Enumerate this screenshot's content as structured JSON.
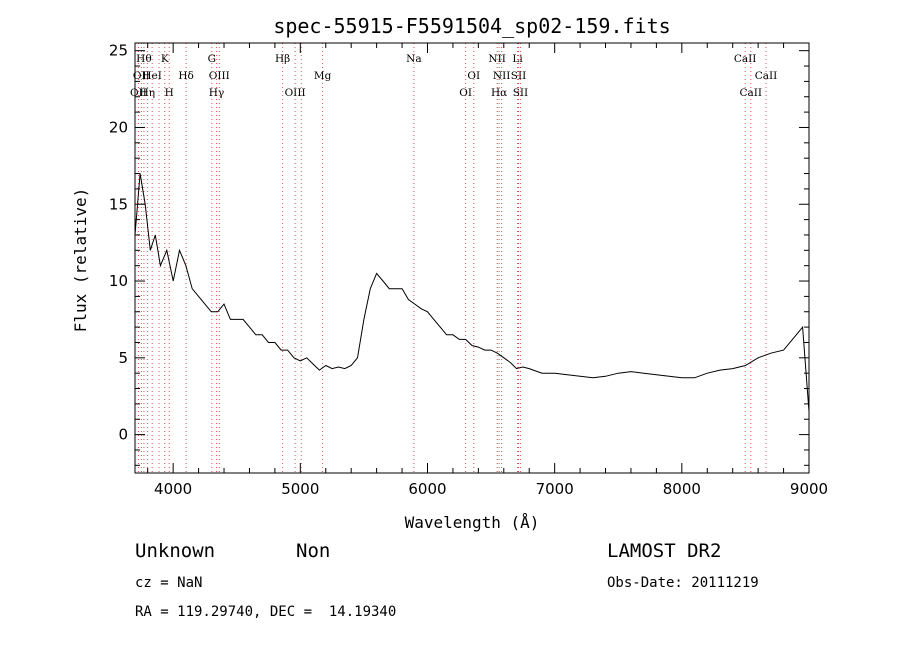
{
  "chart_data": {
    "type": "line",
    "title": "spec-55915-F5591504_sp02-159.fits",
    "xlabel": "Wavelength (Å)",
    "ylabel": "Flux (relative)",
    "xlim": [
      3700,
      9000
    ],
    "ylim": [
      -2.5,
      25.5
    ],
    "xticks": [
      4000,
      5000,
      6000,
      7000,
      8000,
      9000
    ],
    "yticks": [
      0,
      5,
      10,
      15,
      20,
      25
    ],
    "grid": false,
    "series": [
      {
        "x": [
          3700,
          3740,
          3780,
          3820,
          3860,
          3900,
          3950,
          4000,
          4050,
          4100,
          4150,
          4200,
          4250,
          4300,
          4350,
          4400,
          4450,
          4500,
          4550,
          4600,
          4650,
          4700,
          4750,
          4800,
          4850,
          4900,
          4950,
          5000,
          5050,
          5100,
          5150,
          5200,
          5250,
          5300,
          5350,
          5400,
          5450,
          5500,
          5550,
          5600,
          5650,
          5700,
          5750,
          5800,
          5850,
          5900,
          5950,
          6000,
          6050,
          6100,
          6150,
          6200,
          6250,
          6300,
          6350,
          6400,
          6450,
          6500,
          6550,
          6600,
          6650,
          6700,
          6750,
          6800,
          6900,
          7000,
          7100,
          7200,
          7300,
          7400,
          7500,
          7600,
          7700,
          7800,
          7900,
          8000,
          8100,
          8200,
          8300,
          8400,
          8500,
          8600,
          8700,
          8800,
          8900,
          8950,
          9000
        ],
        "y": [
          13,
          17,
          15,
          12,
          13,
          11,
          12,
          10,
          12,
          11,
          9.5,
          9,
          8.5,
          8,
          8,
          8.5,
          7.5,
          7.5,
          7.5,
          7,
          6.5,
          6.5,
          6,
          6,
          5.5,
          5.5,
          5,
          4.8,
          5,
          4.6,
          4.2,
          4.5,
          4.3,
          4.4,
          4.3,
          4.5,
          5,
          7.5,
          9.5,
          10.5,
          10,
          9.5,
          9.5,
          9.5,
          8.8,
          8.5,
          8.2,
          8,
          7.5,
          7,
          6.5,
          6.5,
          6.2,
          6.2,
          5.8,
          5.7,
          5.5,
          5.5,
          5.3,
          5,
          4.7,
          4.3,
          4.4,
          4.3,
          4,
          4,
          3.9,
          3.8,
          3.7,
          3.8,
          4,
          4.1,
          4,
          3.9,
          3.8,
          3.7,
          3.7,
          4,
          4.2,
          4.3,
          4.5,
          5,
          5.3,
          5.5,
          6.5,
          7,
          1.5
        ]
      }
    ],
    "lines": [
      {
        "x": 3727,
        "label": "OII",
        "row": 3
      },
      {
        "x": 3750,
        "label": "OII",
        "row": 2
      },
      {
        "x": 3770,
        "label": "Hθ",
        "row": 1
      },
      {
        "x": 3797,
        "label": "Hη",
        "row": 3
      },
      {
        "x": 3835,
        "label": "HeI",
        "row": 2
      },
      {
        "x": 3889,
        "label": "",
        "row": 0
      },
      {
        "x": 3934,
        "label": "K",
        "row": 1
      },
      {
        "x": 3969,
        "label": "H",
        "row": 3
      },
      {
        "x": 4102,
        "label": "Hδ",
        "row": 2
      },
      {
        "x": 4304,
        "label": "G",
        "row": 1
      },
      {
        "x": 4341,
        "label": "Hγ",
        "row": 3
      },
      {
        "x": 4363,
        "label": "OIII",
        "row": 2
      },
      {
        "x": 4861,
        "label": "Hβ",
        "row": 1
      },
      {
        "x": 4959,
        "label": "OIII",
        "row": 3
      },
      {
        "x": 5007,
        "label": "",
        "row": 0
      },
      {
        "x": 5175,
        "label": "Mg",
        "row": 2
      },
      {
        "x": 5893,
        "label": "Na",
        "row": 1
      },
      {
        "x": 6300,
        "label": "OI",
        "row": 3
      },
      {
        "x": 6364,
        "label": "OI",
        "row": 2
      },
      {
        "x": 6548,
        "label": "NII",
        "row": 1
      },
      {
        "x": 6563,
        "label": "Hα",
        "row": 3
      },
      {
        "x": 6583,
        "label": "NII",
        "row": 2
      },
      {
        "x": 6708,
        "label": "Li",
        "row": 1
      },
      {
        "x": 6716,
        "label": "SII",
        "row": 2
      },
      {
        "x": 6731,
        "label": "SII",
        "row": 3
      },
      {
        "x": 8498,
        "label": "CaII",
        "row": 1
      },
      {
        "x": 8542,
        "label": "CaII",
        "row": 3
      },
      {
        "x": 8662,
        "label": "CaII",
        "row": 2
      }
    ]
  },
  "footer": {
    "class_label": "Unknown",
    "subclass_label": "Non",
    "survey": "LAMOST DR2",
    "redshift": "cz = NaN",
    "obs_date": "Obs-Date: 20111219",
    "coords": "RA = 119.29740, DEC =  14.19340"
  },
  "colors": {
    "line_marker": "#e05050",
    "spectrum": "#000000",
    "axes": "#000000"
  }
}
